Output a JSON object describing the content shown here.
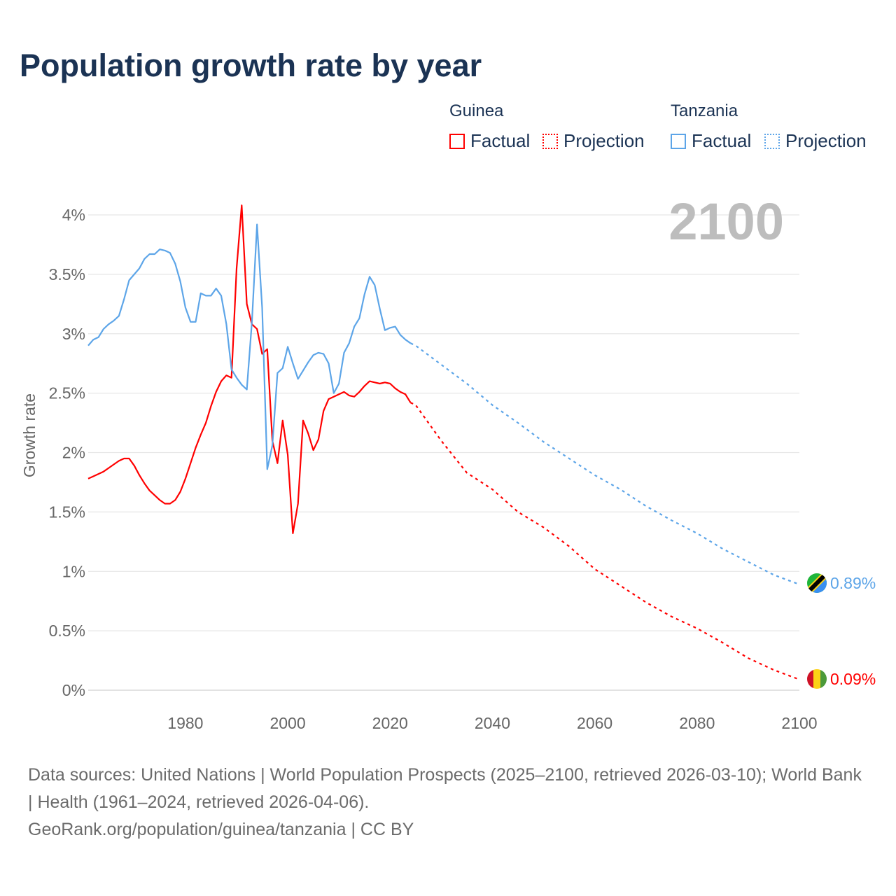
{
  "title": "Population growth rate by year",
  "legend": {
    "groups": [
      {
        "country": "Guinea",
        "factual": "Factual",
        "projection": "Projection",
        "color": "#ff0000"
      },
      {
        "country": "Tanzania",
        "factual": "Factual",
        "projection": "Projection",
        "color": "#5da5e8"
      }
    ]
  },
  "year_display": "2100",
  "footer": {
    "sources": "Data sources: United Nations | World Population Prospects (2025–2100, retrieved 2026-03-10); World Bank | Health (1961–2024, retrieved 2026-04-06).",
    "credit": "GeoRank.org/population/guinea/tanzania | CC BY"
  },
  "chart_data": {
    "type": "line",
    "title": "Population growth rate by year",
    "xlabel": "",
    "ylabel": "Growth rate",
    "xlim": [
      1961,
      2100
    ],
    "ylim": [
      0,
      4.1
    ],
    "x_ticks": [
      1980,
      2000,
      2020,
      2040,
      2060,
      2080,
      2100
    ],
    "x_tick_labels": [
      "1980",
      "2000",
      "2020",
      "2040",
      "2060",
      "2080",
      "2100"
    ],
    "y_ticks": [
      0,
      0.5,
      1,
      1.5,
      2,
      2.5,
      3,
      3.5,
      4
    ],
    "y_tick_labels": [
      "0%",
      "0.5%",
      "1%",
      "1.5%",
      "2%",
      "2.5%",
      "3%",
      "3.5%",
      "4%"
    ],
    "grid": true,
    "legend_position": "top-right",
    "series": [
      {
        "name": "Guinea",
        "color": "#ff0000",
        "end_label": "0.09%",
        "factual": {
          "x": [
            1961,
            1962,
            1963,
            1964,
            1965,
            1966,
            1967,
            1968,
            1969,
            1970,
            1971,
            1972,
            1973,
            1974,
            1975,
            1976,
            1977,
            1978,
            1979,
            1980,
            1981,
            1982,
            1983,
            1984,
            1985,
            1986,
            1987,
            1988,
            1989,
            1990,
            1991,
            1992,
            1993,
            1994,
            1995,
            1996,
            1997,
            1998,
            1999,
            2000,
            2001,
            2002,
            2003,
            2004,
            2005,
            2006,
            2007,
            2008,
            2009,
            2010,
            2011,
            2012,
            2013,
            2014,
            2015,
            2016,
            2017,
            2018,
            2019,
            2020,
            2021,
            2022,
            2023,
            2024
          ],
          "y": [
            1.78,
            1.8,
            1.82,
            1.84,
            1.87,
            1.9,
            1.93,
            1.95,
            1.95,
            1.89,
            1.81,
            1.74,
            1.68,
            1.64,
            1.6,
            1.57,
            1.57,
            1.6,
            1.67,
            1.78,
            1.91,
            2.04,
            2.15,
            2.25,
            2.39,
            2.51,
            2.6,
            2.65,
            2.63,
            3.55,
            4.08,
            3.25,
            3.08,
            3.04,
            2.83,
            2.87,
            2.1,
            1.91,
            2.27,
            1.98,
            1.32,
            1.57,
            2.27,
            2.16,
            2.02,
            2.11,
            2.35,
            2.45,
            2.47,
            2.49,
            2.51,
            2.48,
            2.47,
            2.51,
            2.56,
            2.6,
            2.59,
            2.58,
            2.59,
            2.58,
            2.54,
            2.51,
            2.49,
            2.42
          ]
        },
        "projection": {
          "x": [
            2024,
            2025,
            2030,
            2035,
            2040,
            2045,
            2050,
            2055,
            2060,
            2065,
            2070,
            2075,
            2080,
            2085,
            2090,
            2095,
            2100
          ],
          "y": [
            2.42,
            2.4,
            2.1,
            1.83,
            1.69,
            1.5,
            1.37,
            1.21,
            1.02,
            0.88,
            0.74,
            0.62,
            0.52,
            0.4,
            0.27,
            0.17,
            0.09
          ]
        }
      },
      {
        "name": "Tanzania",
        "color": "#5da5e8",
        "end_label": "0.89%",
        "factual": {
          "x": [
            1961,
            1962,
            1963,
            1964,
            1965,
            1966,
            1967,
            1968,
            1969,
            1970,
            1971,
            1972,
            1973,
            1974,
            1975,
            1976,
            1977,
            1978,
            1979,
            1980,
            1981,
            1982,
            1983,
            1984,
            1985,
            1986,
            1987,
            1988,
            1989,
            1990,
            1991,
            1992,
            1993,
            1994,
            1995,
            1996,
            1997,
            1998,
            1999,
            2000,
            2001,
            2002,
            2003,
            2004,
            2005,
            2006,
            2007,
            2008,
            2009,
            2010,
            2011,
            2012,
            2013,
            2014,
            2015,
            2016,
            2017,
            2018,
            2019,
            2020,
            2021,
            2022,
            2023,
            2024
          ],
          "y": [
            2.9,
            2.95,
            2.97,
            3.04,
            3.08,
            3.11,
            3.15,
            3.29,
            3.45,
            3.5,
            3.55,
            3.63,
            3.67,
            3.67,
            3.71,
            3.7,
            3.68,
            3.59,
            3.44,
            3.22,
            3.1,
            3.1,
            3.34,
            3.32,
            3.32,
            3.38,
            3.32,
            3.08,
            2.7,
            2.63,
            2.57,
            2.53,
            3.1,
            3.92,
            3.22,
            1.86,
            2.06,
            2.67,
            2.71,
            2.89,
            2.75,
            2.62,
            2.69,
            2.76,
            2.82,
            2.84,
            2.83,
            2.75,
            2.5,
            2.58,
            2.84,
            2.92,
            3.06,
            3.13,
            3.33,
            3.48,
            3.41,
            3.21,
            3.03,
            3.05,
            3.06,
            2.99,
            2.95,
            2.92
          ]
        },
        "projection": {
          "x": [
            2024,
            2025,
            2030,
            2035,
            2040,
            2045,
            2050,
            2055,
            2060,
            2065,
            2070,
            2075,
            2080,
            2085,
            2090,
            2095,
            2100
          ],
          "y": [
            2.92,
            2.9,
            2.74,
            2.58,
            2.4,
            2.25,
            2.09,
            1.95,
            1.81,
            1.69,
            1.55,
            1.43,
            1.32,
            1.19,
            1.08,
            0.97,
            0.89
          ]
        }
      }
    ]
  }
}
